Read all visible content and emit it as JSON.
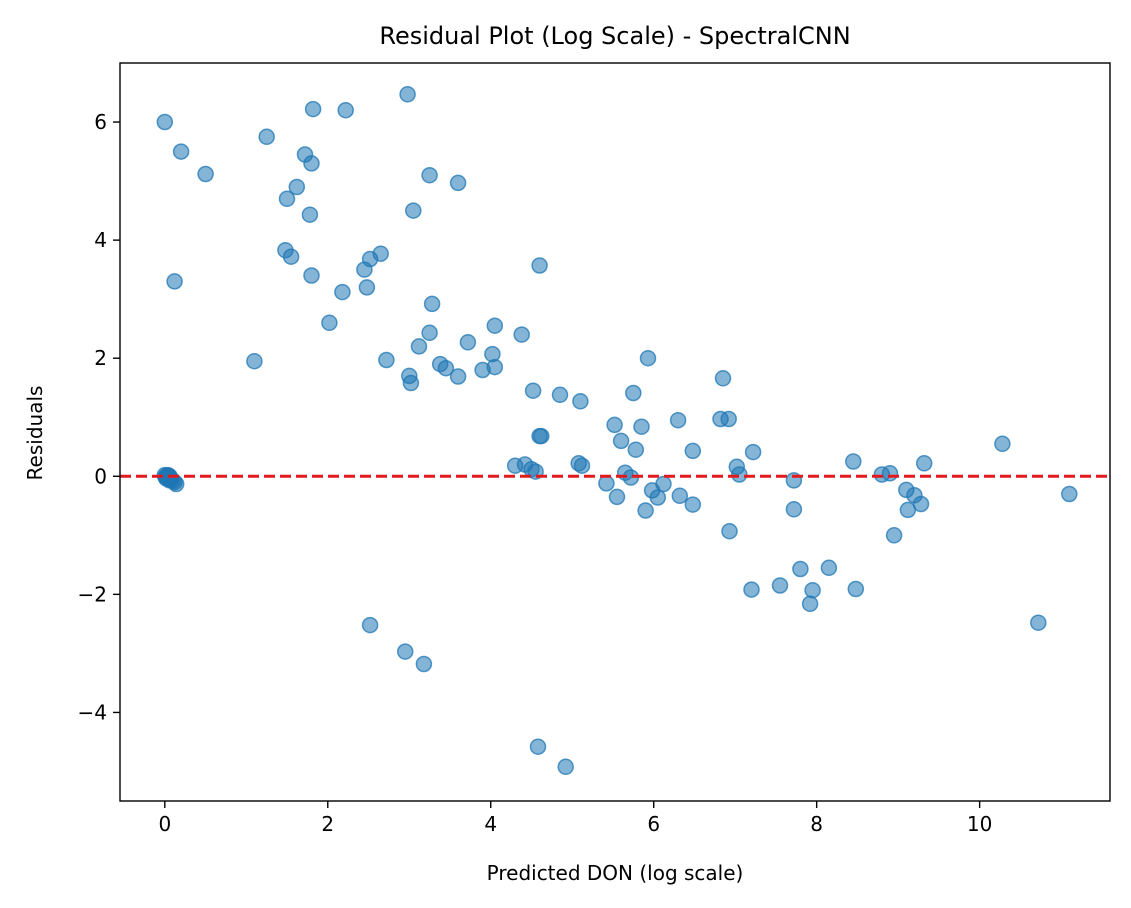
{
  "chart_data": {
    "type": "scatter",
    "title": "Residual Plot (Log Scale) - SpectralCNN",
    "xlabel": "Predicted DON (log scale)",
    "ylabel": "Residuals",
    "xlim": [
      -0.55,
      11.6
    ],
    "ylim": [
      -5.5,
      7.0
    ],
    "xticks": [
      0,
      2,
      4,
      6,
      8,
      10
    ],
    "xtick_labels": [
      "0",
      "2",
      "4",
      "6",
      "8",
      "10"
    ],
    "yticks": [
      -4,
      -2,
      0,
      2,
      4,
      6
    ],
    "ytick_labels": [
      "−4",
      "−2",
      "0",
      "2",
      "4",
      "6"
    ],
    "grid": false,
    "point_color": "#1f77b4",
    "reference_line": {
      "y": 0,
      "color": "#e31a1c",
      "style": "dashed"
    },
    "series": [
      {
        "points": [
          [
            0.0,
            6.0
          ],
          [
            0.2,
            5.5
          ],
          [
            0.5,
            5.12
          ],
          [
            0.12,
            3.3
          ],
          [
            1.1,
            1.95
          ],
          [
            1.25,
            5.75
          ],
          [
            1.72,
            5.45
          ],
          [
            1.8,
            5.3
          ],
          [
            1.82,
            6.22
          ],
          [
            2.22,
            6.2
          ],
          [
            1.62,
            4.9
          ],
          [
            1.5,
            4.7
          ],
          [
            1.78,
            4.43
          ],
          [
            1.48,
            3.83
          ],
          [
            1.55,
            3.72
          ],
          [
            1.8,
            3.4
          ],
          [
            2.18,
            3.12
          ],
          [
            2.02,
            2.6
          ],
          [
            2.45,
            3.5
          ],
          [
            2.48,
            3.2
          ],
          [
            2.52,
            3.68
          ],
          [
            2.65,
            3.77
          ],
          [
            2.72,
            1.97
          ],
          [
            2.98,
            6.47
          ],
          [
            3.05,
            4.5
          ],
          [
            3.25,
            5.1
          ],
          [
            3.6,
            4.97
          ],
          [
            3.28,
            2.92
          ],
          [
            3.25,
            2.43
          ],
          [
            3.12,
            2.2
          ],
          [
            3.0,
            1.7
          ],
          [
            3.02,
            1.58
          ],
          [
            3.38,
            1.9
          ],
          [
            3.45,
            1.83
          ],
          [
            3.6,
            1.69
          ],
          [
            3.72,
            2.27
          ],
          [
            3.9,
            1.8
          ],
          [
            4.02,
            2.07
          ],
          [
            4.05,
            1.85
          ],
          [
            4.05,
            2.55
          ],
          [
            4.38,
            2.4
          ],
          [
            4.6,
            3.57
          ],
          [
            4.52,
            1.45
          ],
          [
            4.85,
            1.38
          ],
          [
            5.1,
            1.27
          ],
          [
            4.62,
            0.68
          ],
          [
            4.6,
            0.68
          ],
          [
            4.3,
            0.18
          ],
          [
            4.42,
            0.2
          ],
          [
            4.5,
            0.12
          ],
          [
            4.55,
            0.08
          ],
          [
            5.08,
            0.22
          ],
          [
            5.12,
            0.18
          ],
          [
            5.42,
            -0.12
          ],
          [
            5.52,
            0.87
          ],
          [
            5.55,
            -0.35
          ],
          [
            5.6,
            0.6
          ],
          [
            5.65,
            0.06
          ],
          [
            5.72,
            -0.02
          ],
          [
            5.75,
            1.41
          ],
          [
            5.78,
            0.45
          ],
          [
            5.85,
            0.84
          ],
          [
            5.9,
            -0.58
          ],
          [
            5.93,
            2.0
          ],
          [
            5.98,
            -0.24
          ],
          [
            6.05,
            -0.36
          ],
          [
            6.12,
            -0.13
          ],
          [
            6.3,
            0.95
          ],
          [
            6.32,
            -0.33
          ],
          [
            6.48,
            0.43
          ],
          [
            6.48,
            -0.48
          ],
          [
            6.82,
            0.97
          ],
          [
            6.85,
            1.66
          ],
          [
            6.92,
            0.97
          ],
          [
            6.93,
            -0.93
          ],
          [
            7.02,
            0.16
          ],
          [
            7.05,
            0.03
          ],
          [
            7.22,
            0.41
          ],
          [
            7.2,
            -1.92
          ],
          [
            7.55,
            -1.85
          ],
          [
            7.72,
            -0.07
          ],
          [
            7.72,
            -0.56
          ],
          [
            7.8,
            -1.57
          ],
          [
            7.92,
            -2.16
          ],
          [
            7.95,
            -1.93
          ],
          [
            8.15,
            -1.55
          ],
          [
            8.45,
            0.25
          ],
          [
            8.48,
            -1.91
          ],
          [
            8.8,
            0.03
          ],
          [
            8.9,
            0.05
          ],
          [
            8.95,
            -1.0
          ],
          [
            9.1,
            -0.23
          ],
          [
            9.12,
            -0.57
          ],
          [
            9.2,
            -0.32
          ],
          [
            9.28,
            -0.47
          ],
          [
            9.32,
            0.22
          ],
          [
            10.28,
            0.55
          ],
          [
            10.72,
            -2.48
          ],
          [
            11.1,
            -0.3
          ],
          [
            2.52,
            -2.52
          ],
          [
            2.95,
            -2.97
          ],
          [
            3.18,
            -3.18
          ],
          [
            4.58,
            -4.58
          ],
          [
            4.92,
            -4.92
          ],
          [
            0.0,
            0.02
          ],
          [
            0.01,
            -0.01
          ],
          [
            0.02,
            0.0
          ],
          [
            0.03,
            0.01
          ],
          [
            0.04,
            -0.02
          ],
          [
            0.05,
            -0.03
          ],
          [
            0.06,
            0.0
          ],
          [
            0.07,
            -0.05
          ],
          [
            0.08,
            -0.06
          ],
          [
            0.1,
            -0.08
          ],
          [
            0.12,
            -0.1
          ],
          [
            0.14,
            -0.13
          ],
          [
            0.02,
            -0.04
          ],
          [
            0.04,
            0.02
          ],
          [
            0.06,
            -0.07
          ]
        ]
      }
    ]
  }
}
